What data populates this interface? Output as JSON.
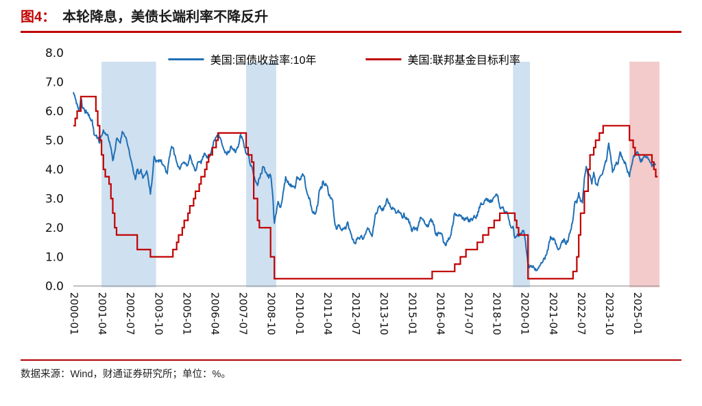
{
  "page": {
    "title_prefix": "图4：",
    "title": "本轮降息，美债长端利率不降反升",
    "footer": "数据来源：Wind，财通证券研究所；单位：%。"
  },
  "chart_data": {
    "type": "line",
    "title": "本轮降息，美债长端利率不降反升",
    "xlabel": "",
    "ylabel": "%",
    "ylim": [
      0,
      8
    ],
    "ytick_step": 1,
    "ytick_labels": [
      "8.0",
      "7.0",
      "6.0",
      "5.0",
      "4.0",
      "3.0",
      "2.0",
      "1.0",
      "0.0"
    ],
    "grid": false,
    "legend_position": "top-center",
    "x_axis": {
      "start": "2000-01",
      "total_months": 312,
      "tick_months": [
        0,
        15,
        30,
        45,
        60,
        75,
        90,
        105,
        120,
        135,
        150,
        165,
        180,
        195,
        210,
        225,
        240,
        255,
        270,
        285,
        300
      ],
      "tick_labels": [
        "2000-01",
        "2001-04",
        "2002-07",
        "2003-10",
        "2005-01",
        "2006-04",
        "2007-07",
        "2008-10",
        "2010-01",
        "2011-04",
        "2012-07",
        "2013-10",
        "2015-01",
        "2016-04",
        "2017-07",
        "2018-10",
        "2020-01",
        "2021-04",
        "2022-07",
        "2023-10",
        "2025-01"
      ]
    },
    "series": [
      {
        "name": "美国:国债收益率:10年",
        "type": "line",
        "color": "#1f6fb5",
        "start_month": 0,
        "monthly_values": [
          6.65,
          6.45,
          6.25,
          6.0,
          6.45,
          6.1,
          6.02,
          5.95,
          5.85,
          5.75,
          5.7,
          5.2,
          5.15,
          5.1,
          4.9,
          5.15,
          5.35,
          5.25,
          5.2,
          4.95,
          4.75,
          4.3,
          4.6,
          5.05,
          5.0,
          4.9,
          5.3,
          5.2,
          5.1,
          4.8,
          4.5,
          4.25,
          3.9,
          3.65,
          4.0,
          3.85,
          4.0,
          3.7,
          3.8,
          3.95,
          3.6,
          3.15,
          3.7,
          4.45,
          4.25,
          4.3,
          4.3,
          4.25,
          4.15,
          4.0,
          3.85,
          4.4,
          4.7,
          4.75,
          4.5,
          4.25,
          4.1,
          4.05,
          4.2,
          4.25,
          4.2,
          4.15,
          4.5,
          4.3,
          4.1,
          3.95,
          4.2,
          4.25,
          4.2,
          4.45,
          4.55,
          4.4,
          4.4,
          4.55,
          4.75,
          5.0,
          5.1,
          5.2,
          5.1,
          4.9,
          4.7,
          4.6,
          4.55,
          4.6,
          4.8,
          4.7,
          4.6,
          4.7,
          4.85,
          5.2,
          5.05,
          4.75,
          4.55,
          4.55,
          4.2,
          4.1,
          3.75,
          3.6,
          3.45,
          3.7,
          3.85,
          4.1,
          3.95,
          3.85,
          3.7,
          3.8,
          3.2,
          2.15,
          2.5,
          2.9,
          2.7,
          2.9,
          3.3,
          3.75,
          3.55,
          3.5,
          3.4,
          3.4,
          3.35,
          3.75,
          3.7,
          3.65,
          3.85,
          3.75,
          3.3,
          3.1,
          2.95,
          2.6,
          2.55,
          2.5,
          2.75,
          3.3,
          3.35,
          3.6,
          3.45,
          3.45,
          3.1,
          3.0,
          2.95,
          2.25,
          1.95,
          2.1,
          2.0,
          1.9,
          1.95,
          1.95,
          2.2,
          1.95,
          1.75,
          1.6,
          1.45,
          1.6,
          1.65,
          1.7,
          1.6,
          1.75,
          1.9,
          1.95,
          1.85,
          1.7,
          2.1,
          2.5,
          2.6,
          2.75,
          2.65,
          2.6,
          2.75,
          3.0,
          2.85,
          2.7,
          2.7,
          2.65,
          2.5,
          2.6,
          2.5,
          2.35,
          2.5,
          2.3,
          2.3,
          2.2,
          1.9,
          2.0,
          1.95,
          1.9,
          2.2,
          2.35,
          2.3,
          2.15,
          2.05,
          2.05,
          2.25,
          2.25,
          2.1,
          1.75,
          1.8,
          1.8,
          1.8,
          1.5,
          1.4,
          1.55,
          1.6,
          1.75,
          2.1,
          2.5,
          2.45,
          2.4,
          2.4,
          2.3,
          2.25,
          2.3,
          2.3,
          2.2,
          2.3,
          2.35,
          2.35,
          2.4,
          2.7,
          2.85,
          2.8,
          2.95,
          3.0,
          2.9,
          2.95,
          2.9,
          3.05,
          3.15,
          3.1,
          2.7,
          2.7,
          2.65,
          2.5,
          2.5,
          2.25,
          2.0,
          2.05,
          1.65,
          1.7,
          1.7,
          1.8,
          1.9,
          1.8,
          1.3,
          0.7,
          0.65,
          0.65,
          0.65,
          0.6,
          0.55,
          0.68,
          0.8,
          0.85,
          0.92,
          1.1,
          1.4,
          1.7,
          1.6,
          1.6,
          1.45,
          1.25,
          1.3,
          1.5,
          1.6,
          1.45,
          1.5,
          1.8,
          1.95,
          2.3,
          2.9,
          2.85,
          3.2,
          2.9,
          2.85,
          3.7,
          4.1,
          3.8,
          3.8,
          3.5,
          3.9,
          3.5,
          3.45,
          3.7,
          3.8,
          3.95,
          4.2,
          4.4,
          4.9,
          4.45,
          3.9,
          4.05,
          4.25,
          4.2,
          4.6,
          4.45,
          4.3,
          4.2,
          3.9,
          3.75,
          4.1,
          4.4,
          4.55,
          4.6,
          4.5,
          4.25,
          4.35,
          4.45,
          4.4,
          4.35,
          4.25,
          4.1,
          4.15,
          4.15
        ]
      },
      {
        "name": "美国:联邦基金目标利率",
        "type": "step",
        "color": "#c00000",
        "end_month": 311,
        "points": [
          [
            0,
            5.5
          ],
          [
            1,
            5.75
          ],
          [
            2,
            6.0
          ],
          [
            4,
            6.5
          ],
          [
            12,
            6.0
          ],
          [
            13,
            5.5
          ],
          [
            14,
            5.0
          ],
          [
            15,
            4.5
          ],
          [
            16,
            4.0
          ],
          [
            17,
            3.75
          ],
          [
            19,
            3.5
          ],
          [
            20,
            3.0
          ],
          [
            21,
            2.5
          ],
          [
            22,
            2.0
          ],
          [
            23,
            1.75
          ],
          [
            34,
            1.25
          ],
          [
            41,
            1.0
          ],
          [
            53,
            1.25
          ],
          [
            55,
            1.5
          ],
          [
            56,
            1.75
          ],
          [
            58,
            2.0
          ],
          [
            59,
            2.25
          ],
          [
            61,
            2.5
          ],
          [
            62,
            2.75
          ],
          [
            64,
            3.0
          ],
          [
            65,
            3.25
          ],
          [
            67,
            3.5
          ],
          [
            68,
            3.75
          ],
          [
            70,
            4.0
          ],
          [
            71,
            4.25
          ],
          [
            72,
            4.5
          ],
          [
            74,
            4.75
          ],
          [
            76,
            5.0
          ],
          [
            77,
            5.25
          ],
          [
            92,
            4.75
          ],
          [
            93,
            4.5
          ],
          [
            95,
            4.25
          ],
          [
            96,
            3.0
          ],
          [
            98,
            2.25
          ],
          [
            99,
            2.0
          ],
          [
            105,
            1.0
          ],
          [
            107,
            0.25
          ],
          [
            191,
            0.5
          ],
          [
            203,
            0.75
          ],
          [
            206,
            1.0
          ],
          [
            209,
            1.25
          ],
          [
            215,
            1.5
          ],
          [
            218,
            1.75
          ],
          [
            221,
            2.0
          ],
          [
            224,
            2.25
          ],
          [
            227,
            2.5
          ],
          [
            235,
            2.25
          ],
          [
            236,
            2.0
          ],
          [
            237,
            1.75
          ],
          [
            242,
            0.25
          ],
          [
            266,
            0.5
          ],
          [
            268,
            1.0
          ],
          [
            269,
            1.75
          ],
          [
            270,
            2.5
          ],
          [
            272,
            3.25
          ],
          [
            274,
            4.0
          ],
          [
            275,
            4.5
          ],
          [
            277,
            4.75
          ],
          [
            278,
            5.0
          ],
          [
            280,
            5.25
          ],
          [
            282,
            5.5
          ],
          [
            296,
            5.0
          ],
          [
            298,
            4.75
          ],
          [
            299,
            4.5
          ],
          [
            308,
            4.25
          ],
          [
            309,
            4.0
          ],
          [
            310,
            3.75
          ]
        ]
      }
    ],
    "shaded_regions": [
      {
        "name": "easing-2001-2003",
        "from_month": 15,
        "to_month": 44,
        "color": "#cfe0f0"
      },
      {
        "name": "easing-2007-2008",
        "from_month": 92,
        "to_month": 108,
        "color": "#cfe0f0"
      },
      {
        "name": "easing-2019-2020",
        "from_month": 234,
        "to_month": 243,
        "color": "#cfe0f0"
      },
      {
        "name": "easing-2024-current",
        "from_month": 296,
        "to_month": 312,
        "color": "#f3cbcb"
      }
    ]
  }
}
